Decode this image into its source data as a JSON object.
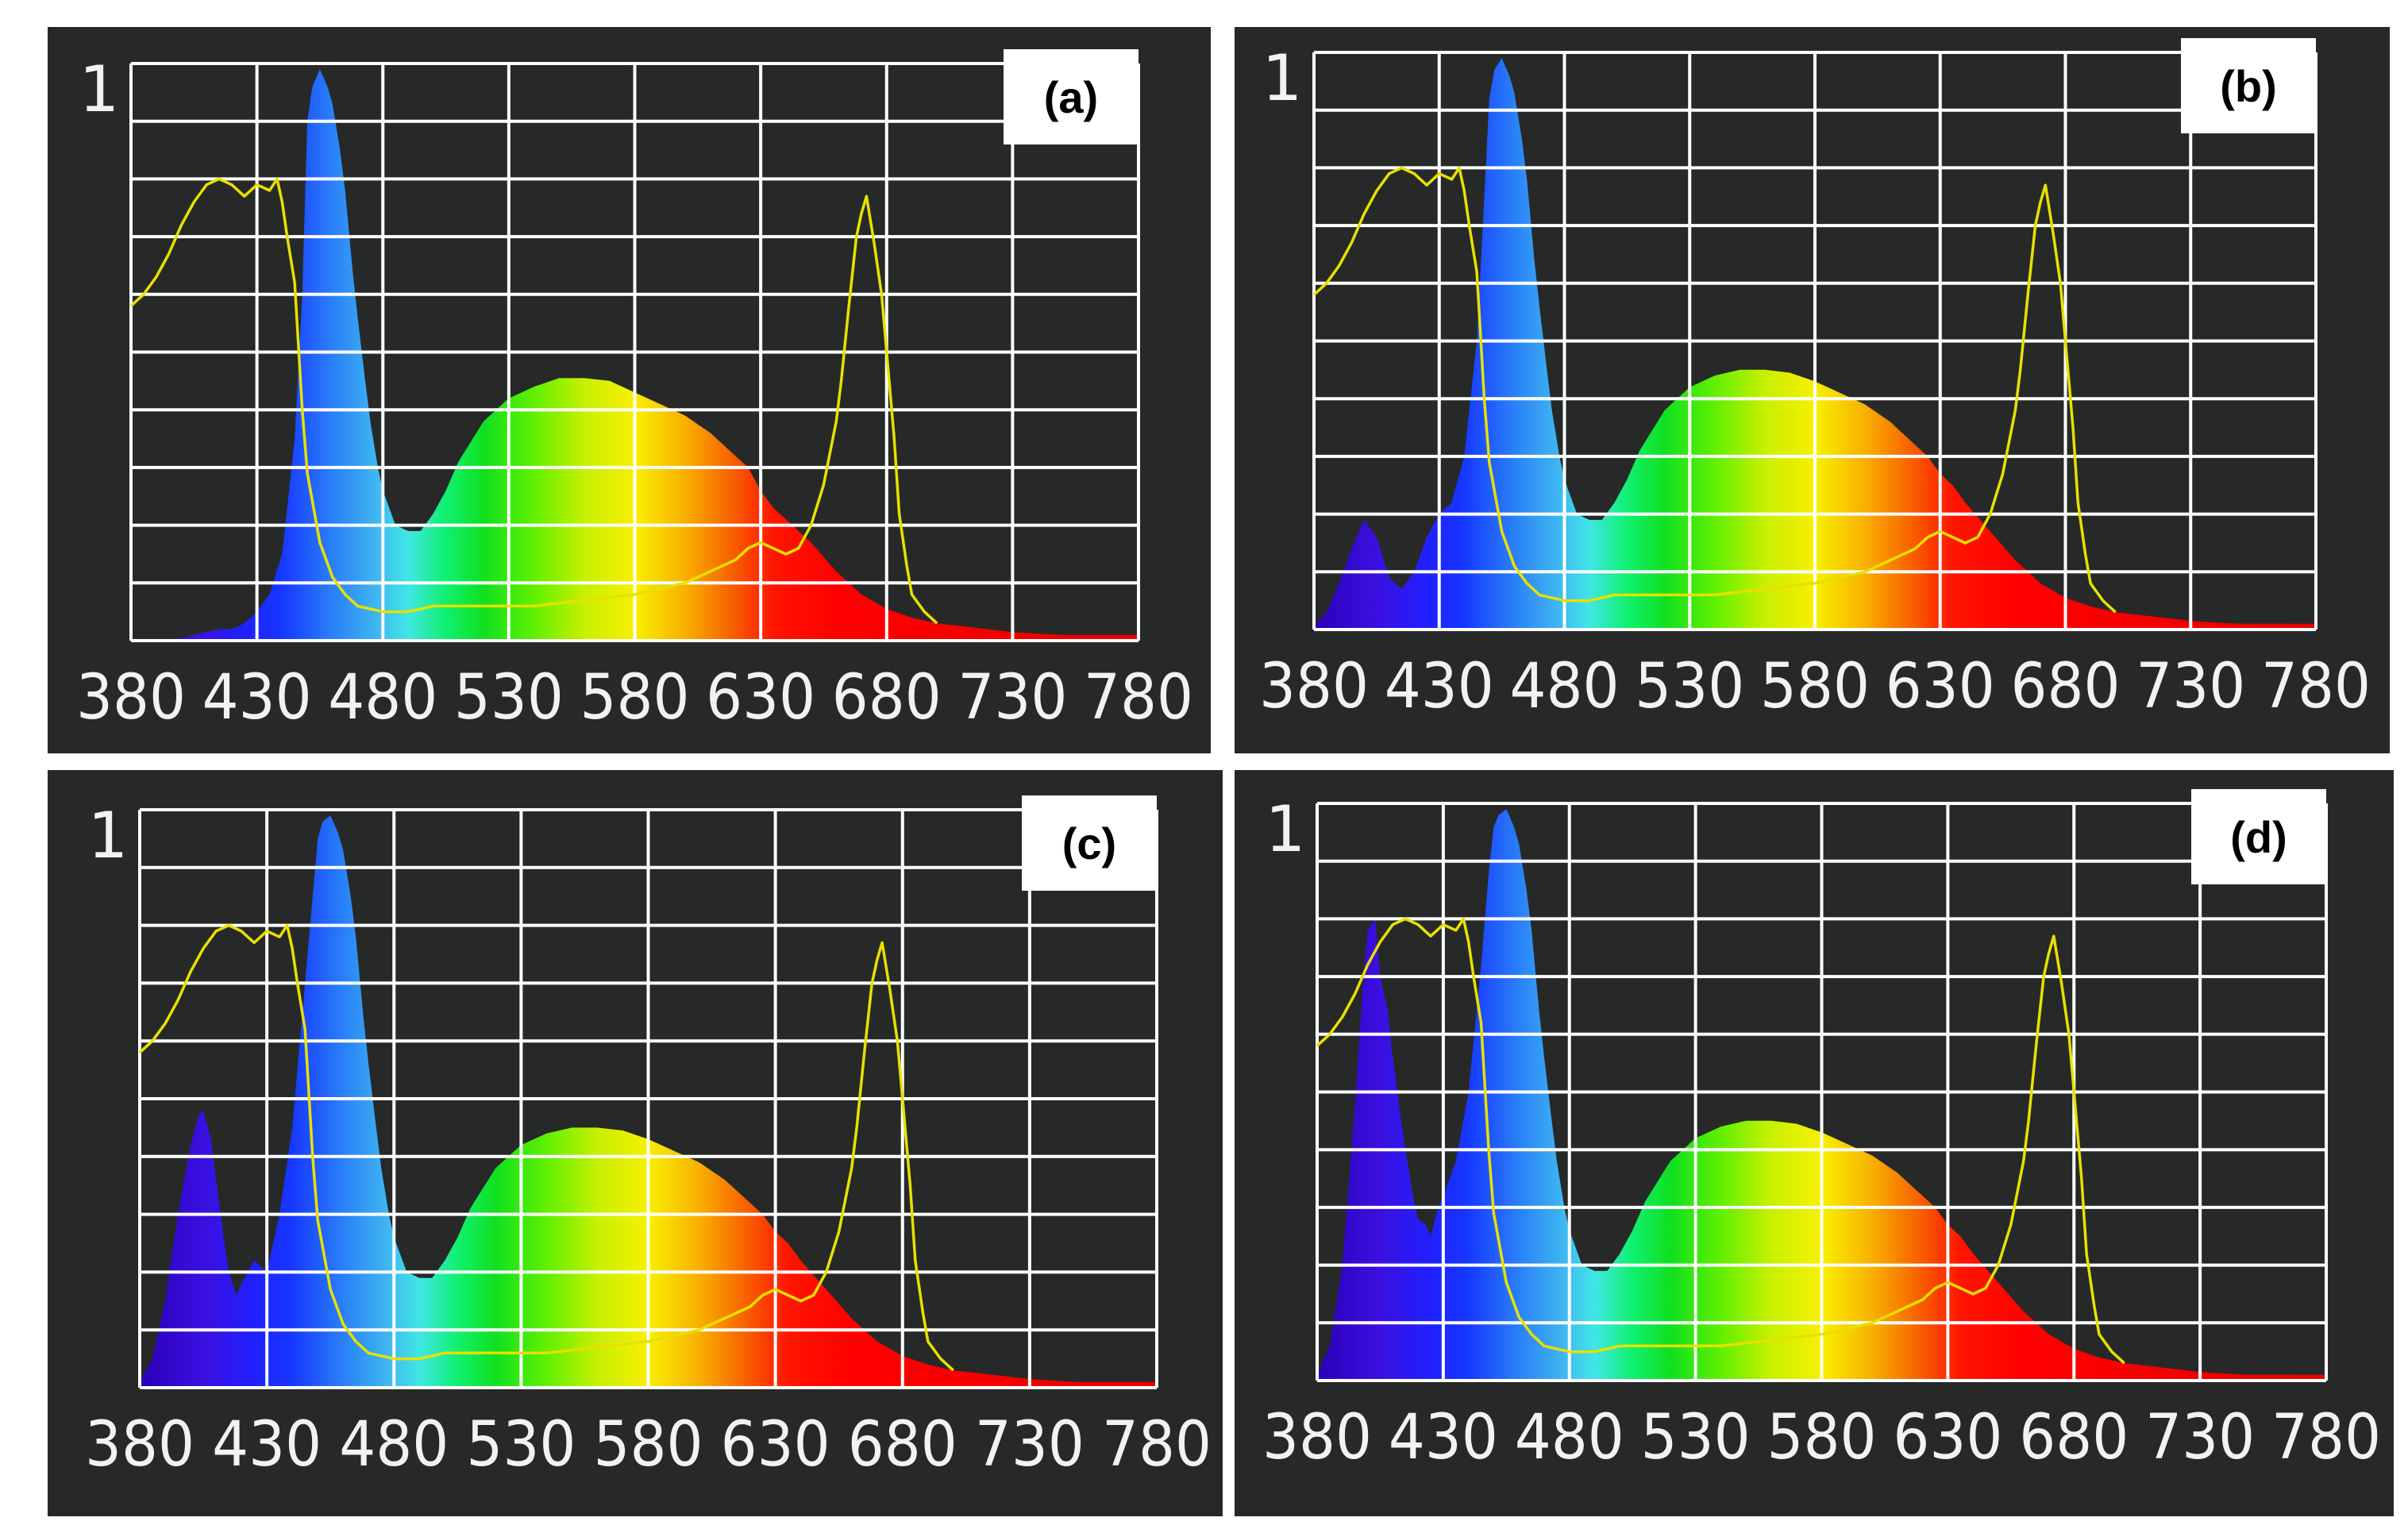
{
  "figure": {
    "background": "#ffffff",
    "panel_background": "#262928",
    "grid_color": "#ffffff",
    "absorption_color": "#e8e000",
    "label_box_color": "#ffffff"
  },
  "chart_data": [
    {
      "type": "area",
      "panel": "a",
      "panel_label": "(a)",
      "title": "",
      "xlabel": "",
      "ylabel": "",
      "ytop_label": "1",
      "x_ticks": [
        380,
        430,
        480,
        530,
        580,
        630,
        680,
        730,
        780
      ],
      "xlim": [
        380,
        780
      ],
      "ylim": [
        0,
        1
      ],
      "grid": true,
      "emission": {
        "x": [
          380,
          395,
          400,
          405,
          410,
          415,
          420,
          425,
          430,
          435,
          440,
          445,
          448,
          450,
          452,
          455,
          458,
          460,
          463,
          465,
          468,
          470,
          473,
          475,
          478,
          480,
          485,
          490,
          495,
          500,
          505,
          510,
          520,
          530,
          540,
          550,
          560,
          570,
          580,
          590,
          600,
          610,
          620,
          625,
          630,
          635,
          640,
          650,
          660,
          670,
          680,
          690,
          700,
          710,
          720,
          730,
          740,
          750,
          760,
          770,
          780
        ],
        "y": [
          0,
          0,
          0.005,
          0.01,
          0.015,
          0.02,
          0.02,
          0.03,
          0.05,
          0.08,
          0.15,
          0.35,
          0.6,
          0.9,
          0.96,
          0.99,
          0.96,
          0.93,
          0.85,
          0.78,
          0.64,
          0.56,
          0.45,
          0.38,
          0.3,
          0.26,
          0.2,
          0.19,
          0.19,
          0.22,
          0.26,
          0.31,
          0.38,
          0.42,
          0.44,
          0.455,
          0.455,
          0.45,
          0.43,
          0.41,
          0.39,
          0.36,
          0.32,
          0.3,
          0.26,
          0.23,
          0.21,
          0.17,
          0.12,
          0.08,
          0.055,
          0.04,
          0.03,
          0.025,
          0.02,
          0.015,
          0.012,
          0.01,
          0.01,
          0.01,
          0.01
        ]
      },
      "absorption": {
        "x": [
          380,
          385,
          390,
          395,
          400,
          405,
          410,
          415,
          420,
          425,
          430,
          435,
          438,
          440,
          442,
          445,
          448,
          450,
          455,
          460,
          465,
          470,
          480,
          490,
          500,
          520,
          540,
          560,
          580,
          600,
          610,
          620,
          625,
          630,
          635,
          640,
          645,
          650,
          655,
          660,
          662,
          665,
          668,
          670,
          672,
          675,
          678,
          680,
          683,
          685,
          688,
          690,
          695,
          700
        ],
        "y": [
          0.58,
          0.6,
          0.63,
          0.67,
          0.72,
          0.76,
          0.79,
          0.8,
          0.79,
          0.77,
          0.79,
          0.78,
          0.8,
          0.76,
          0.7,
          0.62,
          0.4,
          0.29,
          0.17,
          0.11,
          0.08,
          0.06,
          0.05,
          0.05,
          0.06,
          0.06,
          0.06,
          0.07,
          0.08,
          0.1,
          0.12,
          0.14,
          0.16,
          0.17,
          0.16,
          0.15,
          0.16,
          0.2,
          0.27,
          0.38,
          0.45,
          0.58,
          0.7,
          0.74,
          0.77,
          0.69,
          0.6,
          0.5,
          0.35,
          0.22,
          0.13,
          0.08,
          0.05,
          0.03
        ]
      }
    },
    {
      "type": "area",
      "panel": "b",
      "panel_label": "(b)",
      "title": "",
      "xlabel": "",
      "ylabel": "",
      "ytop_label": "1",
      "x_ticks": [
        380,
        430,
        480,
        530,
        580,
        630,
        680,
        730,
        780
      ],
      "xlim": [
        380,
        780
      ],
      "ylim": [
        0,
        1
      ],
      "grid": true,
      "emission": {
        "x": [
          380,
          385,
          390,
          395,
          400,
          405,
          410,
          415,
          420,
          425,
          430,
          435,
          440,
          445,
          448,
          450,
          452,
          455,
          458,
          460,
          463,
          465,
          468,
          470,
          473,
          475,
          478,
          480,
          485,
          490,
          495,
          500,
          505,
          510,
          520,
          530,
          540,
          550,
          560,
          570,
          580,
          590,
          600,
          610,
          620,
          625,
          630,
          635,
          640,
          650,
          660,
          670,
          680,
          690,
          700,
          710,
          720,
          730,
          740,
          750,
          760,
          770,
          780
        ],
        "y": [
          0.005,
          0.03,
          0.08,
          0.14,
          0.19,
          0.16,
          0.09,
          0.07,
          0.1,
          0.16,
          0.2,
          0.22,
          0.3,
          0.5,
          0.75,
          0.92,
          0.97,
          0.99,
          0.96,
          0.93,
          0.85,
          0.78,
          0.64,
          0.56,
          0.45,
          0.38,
          0.3,
          0.26,
          0.2,
          0.19,
          0.19,
          0.22,
          0.26,
          0.31,
          0.38,
          0.42,
          0.44,
          0.45,
          0.45,
          0.445,
          0.43,
          0.41,
          0.39,
          0.36,
          0.32,
          0.3,
          0.27,
          0.25,
          0.22,
          0.17,
          0.12,
          0.08,
          0.055,
          0.04,
          0.03,
          0.025,
          0.02,
          0.015,
          0.012,
          0.01,
          0.01,
          0.01,
          0.01
        ]
      },
      "absorption": {
        "x": [
          380,
          385,
          390,
          395,
          400,
          405,
          410,
          415,
          420,
          425,
          430,
          435,
          438,
          440,
          442,
          445,
          448,
          450,
          455,
          460,
          465,
          470,
          480,
          490,
          500,
          520,
          540,
          560,
          580,
          600,
          610,
          620,
          625,
          630,
          635,
          640,
          645,
          650,
          655,
          660,
          662,
          665,
          668,
          670,
          672,
          675,
          678,
          680,
          683,
          685,
          688,
          690,
          695,
          700
        ],
        "y": [
          0.58,
          0.6,
          0.63,
          0.67,
          0.72,
          0.76,
          0.79,
          0.8,
          0.79,
          0.77,
          0.79,
          0.78,
          0.8,
          0.76,
          0.7,
          0.62,
          0.4,
          0.29,
          0.17,
          0.11,
          0.08,
          0.06,
          0.05,
          0.05,
          0.06,
          0.06,
          0.06,
          0.07,
          0.08,
          0.1,
          0.12,
          0.14,
          0.16,
          0.17,
          0.16,
          0.15,
          0.16,
          0.2,
          0.27,
          0.38,
          0.45,
          0.58,
          0.7,
          0.74,
          0.77,
          0.69,
          0.6,
          0.5,
          0.35,
          0.22,
          0.13,
          0.08,
          0.05,
          0.03
        ]
      }
    },
    {
      "type": "area",
      "panel": "c",
      "panel_label": "(c)",
      "title": "",
      "xlabel": "",
      "ylabel": "",
      "ytop_label": "1",
      "x_ticks": [
        380,
        430,
        480,
        530,
        580,
        630,
        680,
        730,
        780
      ],
      "xlim": [
        380,
        780
      ],
      "ylim": [
        0,
        1
      ],
      "grid": true,
      "emission": {
        "x": [
          380,
          385,
          390,
          395,
          400,
          403,
          405,
          408,
          410,
          413,
          415,
          418,
          420,
          425,
          430,
          435,
          440,
          445,
          448,
          450,
          452,
          455,
          458,
          460,
          463,
          465,
          468,
          470,
          473,
          475,
          478,
          480,
          485,
          490,
          495,
          500,
          505,
          510,
          520,
          530,
          540,
          550,
          560,
          570,
          580,
          590,
          600,
          610,
          620,
          625,
          630,
          635,
          640,
          650,
          660,
          670,
          680,
          690,
          700,
          710,
          720,
          730,
          740,
          750,
          760,
          770,
          780
        ],
        "y": [
          0.01,
          0.05,
          0.15,
          0.3,
          0.42,
          0.47,
          0.48,
          0.43,
          0.36,
          0.26,
          0.2,
          0.16,
          0.18,
          0.22,
          0.2,
          0.3,
          0.45,
          0.7,
          0.85,
          0.95,
          0.98,
          0.99,
          0.96,
          0.93,
          0.85,
          0.78,
          0.64,
          0.56,
          0.45,
          0.38,
          0.3,
          0.26,
          0.2,
          0.19,
          0.19,
          0.22,
          0.26,
          0.31,
          0.38,
          0.42,
          0.44,
          0.45,
          0.45,
          0.445,
          0.43,
          0.41,
          0.39,
          0.36,
          0.32,
          0.3,
          0.27,
          0.25,
          0.22,
          0.17,
          0.12,
          0.08,
          0.055,
          0.04,
          0.03,
          0.025,
          0.02,
          0.015,
          0.012,
          0.01,
          0.01,
          0.01,
          0.01
        ]
      },
      "absorption": {
        "x": [
          380,
          385,
          390,
          395,
          400,
          405,
          410,
          415,
          420,
          425,
          430,
          435,
          438,
          440,
          442,
          445,
          448,
          450,
          455,
          460,
          465,
          470,
          480,
          490,
          500,
          520,
          540,
          560,
          580,
          600,
          610,
          620,
          625,
          630,
          635,
          640,
          645,
          650,
          655,
          660,
          662,
          665,
          668,
          670,
          672,
          675,
          678,
          680,
          683,
          685,
          688,
          690,
          695,
          700
        ],
        "y": [
          0.58,
          0.6,
          0.63,
          0.67,
          0.72,
          0.76,
          0.79,
          0.8,
          0.79,
          0.77,
          0.79,
          0.78,
          0.8,
          0.76,
          0.7,
          0.62,
          0.4,
          0.29,
          0.17,
          0.11,
          0.08,
          0.06,
          0.05,
          0.05,
          0.06,
          0.06,
          0.06,
          0.07,
          0.08,
          0.1,
          0.12,
          0.14,
          0.16,
          0.17,
          0.16,
          0.15,
          0.16,
          0.2,
          0.27,
          0.38,
          0.45,
          0.58,
          0.7,
          0.74,
          0.77,
          0.69,
          0.6,
          0.5,
          0.35,
          0.22,
          0.13,
          0.08,
          0.05,
          0.03
        ]
      }
    },
    {
      "type": "area",
      "panel": "d",
      "panel_label": "(d)",
      "title": "",
      "xlabel": "",
      "ylabel": "",
      "ytop_label": "1",
      "x_ticks": [
        380,
        430,
        480,
        530,
        580,
        630,
        680,
        730,
        780
      ],
      "xlim": [
        380,
        780
      ],
      "ylim": [
        0,
        1
      ],
      "grid": true,
      "emission": {
        "x": [
          380,
          385,
          390,
          395,
          398,
          400,
          403,
          405,
          408,
          410,
          413,
          415,
          418,
          420,
          423,
          425,
          428,
          430,
          435,
          440,
          445,
          448,
          450,
          452,
          455,
          458,
          460,
          463,
          465,
          468,
          470,
          473,
          475,
          478,
          480,
          485,
          490,
          495,
          500,
          505,
          510,
          520,
          530,
          540,
          550,
          560,
          570,
          580,
          590,
          600,
          610,
          620,
          625,
          630,
          635,
          640,
          650,
          660,
          670,
          680,
          690,
          700,
          710,
          720,
          730,
          740,
          750,
          760,
          770,
          780
        ],
        "y": [
          0.01,
          0.06,
          0.2,
          0.48,
          0.68,
          0.78,
          0.8,
          0.7,
          0.64,
          0.56,
          0.46,
          0.4,
          0.32,
          0.28,
          0.27,
          0.25,
          0.3,
          0.32,
          0.38,
          0.5,
          0.72,
          0.88,
          0.96,
          0.98,
          0.99,
          0.96,
          0.93,
          0.85,
          0.78,
          0.64,
          0.56,
          0.45,
          0.38,
          0.3,
          0.26,
          0.2,
          0.19,
          0.19,
          0.22,
          0.26,
          0.31,
          0.38,
          0.42,
          0.44,
          0.45,
          0.45,
          0.445,
          0.43,
          0.41,
          0.39,
          0.36,
          0.32,
          0.3,
          0.27,
          0.25,
          0.22,
          0.17,
          0.12,
          0.08,
          0.055,
          0.04,
          0.03,
          0.025,
          0.02,
          0.015,
          0.012,
          0.01,
          0.01,
          0.01,
          0.01
        ]
      },
      "absorption": {
        "x": [
          380,
          385,
          390,
          395,
          400,
          405,
          410,
          415,
          420,
          425,
          430,
          435,
          438,
          440,
          442,
          445,
          448,
          450,
          455,
          460,
          465,
          470,
          480,
          490,
          500,
          520,
          540,
          560,
          580,
          600,
          610,
          620,
          625,
          630,
          635,
          640,
          645,
          650,
          655,
          660,
          662,
          665,
          668,
          670,
          672,
          675,
          678,
          680,
          683,
          685,
          688,
          690,
          695,
          700
        ],
        "y": [
          0.58,
          0.6,
          0.63,
          0.67,
          0.72,
          0.76,
          0.79,
          0.8,
          0.79,
          0.77,
          0.79,
          0.78,
          0.8,
          0.76,
          0.7,
          0.62,
          0.4,
          0.29,
          0.17,
          0.11,
          0.08,
          0.06,
          0.05,
          0.05,
          0.06,
          0.06,
          0.06,
          0.07,
          0.08,
          0.1,
          0.12,
          0.14,
          0.16,
          0.17,
          0.16,
          0.15,
          0.16,
          0.2,
          0.27,
          0.38,
          0.45,
          0.58,
          0.7,
          0.74,
          0.77,
          0.69,
          0.6,
          0.5,
          0.35,
          0.22,
          0.13,
          0.08,
          0.05,
          0.03
        ]
      }
    }
  ]
}
